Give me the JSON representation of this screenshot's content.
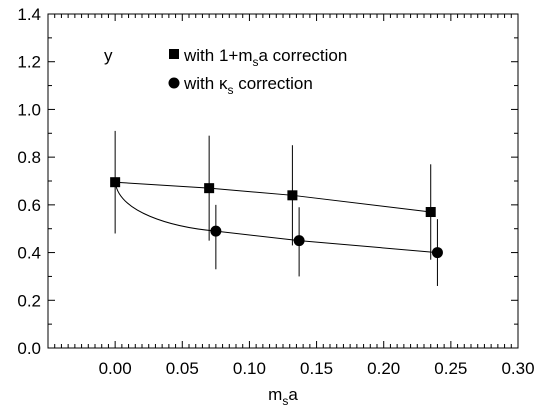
{
  "chart_data": {
    "type": "scatter",
    "xlabel": {
      "main": "m",
      "sub": "s",
      "tail": "a"
    },
    "ylabel": "",
    "xlim": [
      -0.05,
      0.3
    ],
    "ylim": [
      0.0,
      1.4
    ],
    "xticks": [
      "0.00",
      "0.05",
      "0.10",
      "0.15",
      "0.20",
      "0.25",
      "0.30"
    ],
    "yticks": [
      "0.0",
      "0.2",
      "0.4",
      "0.6",
      "0.8",
      "1.0",
      "1.2",
      "1.4"
    ],
    "annotation": "y",
    "legend_position": "top",
    "series": [
      {
        "name": "with 1+m_s a correction",
        "legend": {
          "pre": "with 1+m",
          "sub": "s",
          "post": "a correction"
        },
        "marker": "square",
        "x": [
          0.0,
          0.07,
          0.132,
          0.235
        ],
        "y": [
          0.695,
          0.67,
          0.64,
          0.57
        ],
        "y_err_low": [
          0.48,
          0.45,
          0.43,
          0.37
        ],
        "y_err_high": [
          0.91,
          0.89,
          0.85,
          0.77
        ],
        "fit_line": "straight"
      },
      {
        "name": "with κ_s correction",
        "legend": {
          "pre": "with κ",
          "sub": "s",
          "post": " correction"
        },
        "marker": "circle",
        "x": [
          0.075,
          0.137,
          0.24
        ],
        "y": [
          0.49,
          0.45,
          0.4
        ],
        "y_err_low": [
          0.33,
          0.3,
          0.26
        ],
        "y_err_high": [
          0.6,
          0.59,
          0.54
        ],
        "fit_line": "curve-through-origin-point"
      }
    ]
  }
}
